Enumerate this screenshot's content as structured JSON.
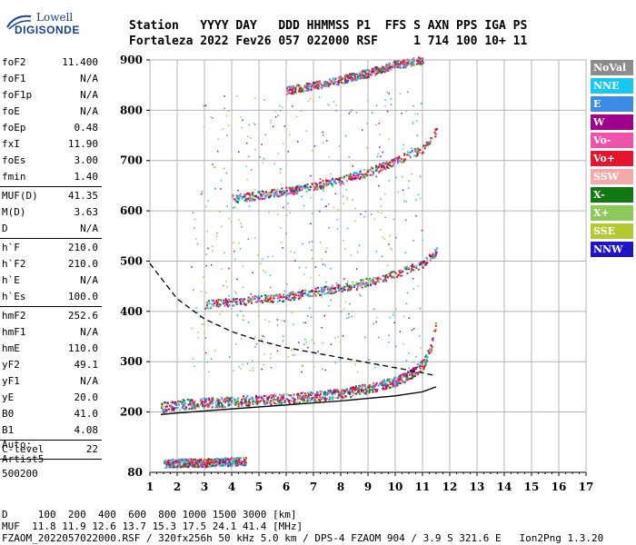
{
  "logo": {
    "line1": "Lowell",
    "line2": "DIGISONDE"
  },
  "header": {
    "line1": "Station   YYYY DAY   DDD HHMMSS P1  FFS S AXN PPS IGA PS",
    "line2": "Fortaleza 2022 Fev26 057 022000 RSF     1 714 100 10+ 11"
  },
  "params": {
    "group1": [
      {
        "k": "foF2",
        "v": "11.400"
      },
      {
        "k": "foF1",
        "v": "N/A"
      },
      {
        "k": "foF1p",
        "v": "N/A"
      },
      {
        "k": "foE",
        "v": "N/A"
      },
      {
        "k": "foEp",
        "v": "0.48"
      },
      {
        "k": "fxI",
        "v": "11.90"
      },
      {
        "k": "foEs",
        "v": "3.00"
      },
      {
        "k": "fmin",
        "v": "1.40"
      }
    ],
    "group2": [
      {
        "k": "MUF(D)",
        "v": "41.35"
      },
      {
        "k": "M(D)",
        "v": "3.63"
      },
      {
        "k": "D",
        "v": "N/A"
      }
    ],
    "group3": [
      {
        "k": "h`F",
        "v": "210.0"
      },
      {
        "k": "h`F2",
        "v": "210.0"
      },
      {
        "k": "h`E",
        "v": "N/A"
      },
      {
        "k": "h`Es",
        "v": "100.0"
      }
    ],
    "group4": [
      {
        "k": "hmF2",
        "v": "252.6"
      },
      {
        "k": "hmF1",
        "v": "N/A"
      },
      {
        "k": "hmE",
        "v": "110.0"
      },
      {
        "k": "yF2",
        "v": "49.1"
      },
      {
        "k": "yF1",
        "v": "N/A"
      },
      {
        "k": "yE",
        "v": "20.0"
      },
      {
        "k": "B0",
        "v": "41.0"
      },
      {
        "k": "B1",
        "v": "4.08"
      }
    ],
    "group5": [
      {
        "k": "C-level",
        "v": "22"
      }
    ]
  },
  "auto": {
    "line1": "Auto:",
    "line2": "Artist5",
    "line3": "500200"
  },
  "legend": [
    {
      "label": "NoVal",
      "color": "#8c8c8c"
    },
    {
      "label": "NNE",
      "color": "#19c8f0"
    },
    {
      "label": "E",
      "color": "#3c8ce6"
    },
    {
      "label": "W",
      "color": "#a0008c"
    },
    {
      "label": "Vo-",
      "color": "#f052aa"
    },
    {
      "label": "Vo+",
      "color": "#e6142d"
    },
    {
      "label": "SSW",
      "color": "#f5aaaa"
    },
    {
      "label": "X-",
      "color": "#127812"
    },
    {
      "label": "X+",
      "color": "#8cc85a"
    },
    {
      "label": "SSE",
      "color": "#b4c832"
    },
    {
      "label": "NNW",
      "color": "#1e14c8"
    }
  ],
  "footer": {
    "line1": "D     100  200  400  600  800 1000 1500 3000 [km]",
    "line2": "MUF  11.8 11.9 12.6 13.7 15.3 17.5 24.1 41.4 [MHz]",
    "line3": "FZAOM_2022057022000.RSF / 320fx256h 50 kHz 5.0 km / DPS-4 FZAOM 904 / 3.9 S 321.6 E   Ion2Png 1.3.20"
  },
  "chart_data": {
    "type": "scatter",
    "xlim": [
      1,
      17
    ],
    "ylim": [
      80,
      900
    ],
    "xticks": [
      1,
      2,
      3,
      4,
      5,
      6,
      7,
      8,
      9,
      10,
      11,
      12,
      13,
      14,
      15,
      16,
      17
    ],
    "yticks": [
      200,
      300,
      400,
      500,
      600,
      700,
      800,
      900
    ],
    "ytick_labels": [
      "200",
      "300",
      "400",
      "500",
      "600",
      "700",
      "800",
      "900"
    ],
    "ybottom_label": "80",
    "grid": true,
    "traces": [
      {
        "name": "F trace",
        "x": [
          1.4,
          2,
          3,
          4,
          5,
          6,
          7,
          8,
          9,
          10,
          10.5,
          11,
          11.3,
          11.5
        ],
        "y": [
          210,
          215,
          220,
          222,
          225,
          228,
          232,
          238,
          248,
          262,
          275,
          295,
          330,
          390
        ]
      },
      {
        "name": "Es trace",
        "x": [
          1.5,
          2,
          3,
          3.5,
          4,
          4.5
        ],
        "y": [
          98,
          100,
          100,
          102,
          102,
          104
        ]
      },
      {
        "name": "2F trace",
        "x": [
          3,
          4,
          5,
          6,
          7,
          8,
          9,
          10,
          11,
          11.5
        ],
        "y": [
          415,
          420,
          425,
          430,
          440,
          448,
          460,
          475,
          495,
          520
        ]
      },
      {
        "name": "3F trace",
        "x": [
          4,
          5,
          6,
          7,
          8,
          9,
          10,
          11,
          11.5
        ],
        "y": [
          625,
          632,
          640,
          650,
          662,
          678,
          700,
          725,
          760
        ]
      },
      {
        "name": "4F trace",
        "x": [
          6,
          7,
          8,
          9,
          10,
          11
        ],
        "y": [
          840,
          850,
          862,
          875,
          892,
          900
        ]
      }
    ],
    "profile": {
      "x": [
        1.4,
        2,
        4,
        6,
        8,
        10,
        11,
        11.5
      ],
      "y": [
        195,
        198,
        206,
        214,
        222,
        232,
        240,
        250
      ]
    },
    "dashed_muf": {
      "x": [
        1,
        2,
        3,
        4,
        5,
        6,
        7,
        8,
        9,
        10,
        11,
        11.5
      ],
      "y": [
        495,
        425,
        385,
        360,
        342,
        328,
        318,
        308,
        298,
        288,
        278,
        272
      ]
    }
  }
}
